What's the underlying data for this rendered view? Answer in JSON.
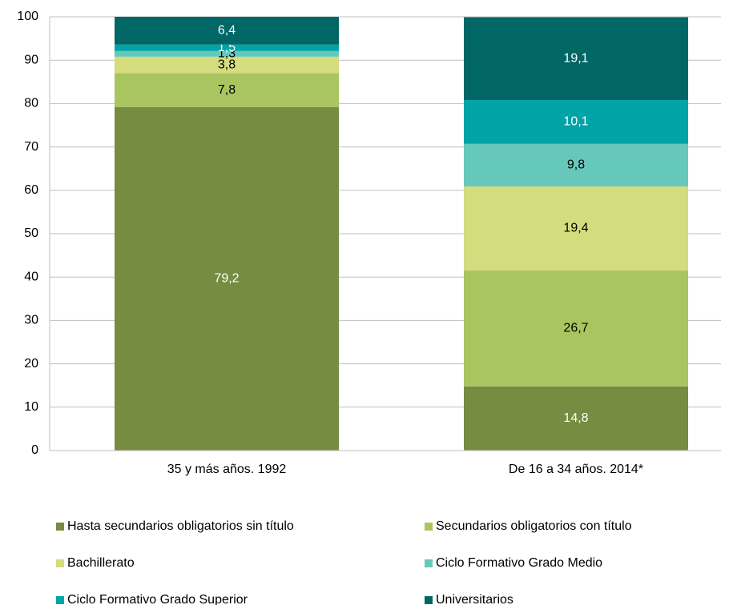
{
  "chart_data": {
    "type": "stacked_bar",
    "categories": [
      "35 y más  años. 1992",
      "De 16 a 34 años. 2014*"
    ],
    "series": [
      {
        "name": "Hasta secundarios obligatorios sin título",
        "color": "#758c41",
        "label_color": "#ffffff",
        "values": [
          79.2,
          14.8
        ],
        "value_labels": [
          "79,2",
          "14,8"
        ]
      },
      {
        "name": "Secundarios obligatorios con título",
        "color": "#a9c55f",
        "label_color": "#000000",
        "values": [
          7.8,
          26.7
        ],
        "value_labels": [
          "7,8",
          "26,7"
        ]
      },
      {
        "name": "Bachillerato",
        "color": "#d4dc7e",
        "label_color": "#000000",
        "values": [
          3.8,
          19.4
        ],
        "value_labels": [
          "3,8",
          "19,4"
        ]
      },
      {
        "name": "Ciclo Formativo Grado Medio",
        "color": "#66c8ba",
        "label_color": "#000000",
        "values": [
          1.3,
          9.8
        ],
        "value_labels": [
          "1,3",
          "9,8"
        ]
      },
      {
        "name": "Ciclo Formativo Grado Superior",
        "color": "#00a4a6",
        "label_color": "#ffffff",
        "values": [
          1.5,
          10.1
        ],
        "value_labels": [
          "1,5",
          "10,1"
        ]
      },
      {
        "name": "Universitarios",
        "color": "#006666",
        "label_color": "#ffffff",
        "values": [
          6.4,
          19.1
        ],
        "value_labels": [
          "6,4",
          "19,1"
        ]
      }
    ],
    "ylim": [
      0,
      100
    ],
    "yticks": [
      0,
      10,
      20,
      30,
      40,
      50,
      60,
      70,
      80,
      90,
      100
    ],
    "grid": true,
    "legend": "bottom"
  }
}
